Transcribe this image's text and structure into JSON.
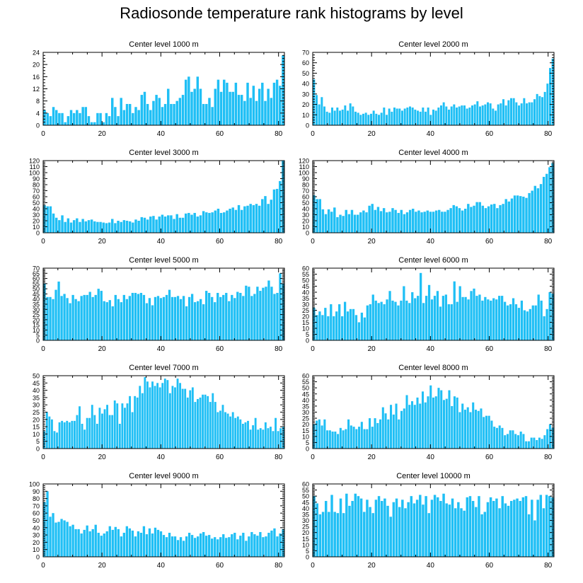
{
  "page": {
    "title": "Radiosonde temperature rank histograms by level"
  },
  "colors": {
    "bar": "#1FBFF5",
    "axis": "#000000",
    "background": "#ffffff"
  },
  "chart_data": [
    {
      "type": "bar",
      "title": "Center level 1000 m",
      "xlabel": "",
      "ylabel": "",
      "xlim": [
        0,
        82
      ],
      "ylim": [
        0,
        24
      ],
      "xticks": [
        0,
        20,
        40,
        60,
        80
      ],
      "yticks": [
        0,
        4,
        8,
        12,
        16,
        20,
        24
      ],
      "x_start": 0,
      "values": [
        5,
        4,
        3,
        6,
        5,
        4,
        4,
        1,
        3,
        5,
        4,
        5,
        4,
        6,
        6,
        3,
        1,
        1,
        4,
        4,
        1,
        4,
        3,
        9,
        6,
        3,
        9,
        5,
        7,
        7,
        4,
        6,
        5,
        10,
        11,
        7,
        5,
        8,
        10,
        9,
        6,
        7,
        12,
        7,
        7,
        8,
        9,
        10,
        15,
        16,
        11,
        12,
        16,
        12,
        7,
        7,
        9,
        6,
        12,
        15,
        11,
        15,
        14,
        11,
        11,
        14,
        10,
        10,
        8,
        14,
        9,
        13,
        8,
        12,
        14,
        8,
        12,
        9,
        14,
        15,
        13,
        23
      ]
    },
    {
      "type": "bar",
      "title": "Center level 2000 m",
      "xlabel": "",
      "ylabel": "",
      "xlim": [
        0,
        82
      ],
      "ylim": [
        0,
        70
      ],
      "xticks": [
        0,
        20,
        40,
        60,
        80
      ],
      "yticks": [
        0,
        10,
        20,
        30,
        40,
        50,
        60,
        70
      ],
      "x_start": 0,
      "values": [
        44,
        29,
        20,
        27,
        18,
        13,
        12,
        17,
        14,
        17,
        14,
        15,
        19,
        14,
        21,
        18,
        13,
        12,
        10,
        11,
        12,
        10,
        11,
        14,
        11,
        10,
        12,
        17,
        10,
        16,
        13,
        17,
        16,
        16,
        14,
        16,
        17,
        18,
        17,
        15,
        14,
        13,
        17,
        13,
        17,
        10,
        15,
        14,
        17,
        19,
        22,
        18,
        15,
        18,
        20,
        17,
        18,
        19,
        19,
        16,
        17,
        19,
        20,
        23,
        18,
        19,
        20,
        22,
        21,
        16,
        14,
        20,
        21,
        25,
        19,
        24,
        26,
        26,
        22,
        19,
        21,
        26,
        21,
        22,
        22,
        25,
        30,
        28,
        27,
        32,
        40,
        55,
        64
      ]
    },
    {
      "type": "bar",
      "title": "Center level 3000 m",
      "xlabel": "",
      "ylabel": "",
      "xlim": [
        0,
        82
      ],
      "ylim": [
        0,
        120
      ],
      "xticks": [
        0,
        20,
        40,
        60,
        80
      ],
      "yticks": [
        0,
        10,
        20,
        30,
        40,
        50,
        60,
        70,
        80,
        90,
        100,
        110,
        120
      ],
      "x_start": 0,
      "values": [
        46,
        44,
        44,
        32,
        25,
        21,
        29,
        18,
        24,
        17,
        21,
        24,
        18,
        23,
        19,
        21,
        22,
        19,
        18,
        18,
        17,
        16,
        17,
        23,
        16,
        20,
        18,
        21,
        20,
        19,
        17,
        22,
        20,
        26,
        25,
        22,
        27,
        28,
        22,
        27,
        30,
        27,
        29,
        29,
        23,
        31,
        25,
        25,
        32,
        33,
        30,
        33,
        27,
        29,
        36,
        34,
        33,
        34,
        37,
        40,
        33,
        34,
        37,
        40,
        42,
        38,
        46,
        38,
        44,
        45,
        48,
        46,
        48,
        45,
        56,
        61,
        48,
        55,
        72,
        73,
        86,
        120
      ]
    },
    {
      "type": "bar",
      "title": "Center level 4000 m",
      "xlabel": "",
      "ylabel": "",
      "xlim": [
        0,
        82
      ],
      "ylim": [
        0,
        120
      ],
      "xticks": [
        0,
        20,
        40,
        60,
        80
      ],
      "yticks": [
        0,
        10,
        20,
        30,
        40,
        50,
        60,
        70,
        80,
        90,
        100,
        110,
        120
      ],
      "x_start": 0,
      "values": [
        62,
        56,
        56,
        39,
        31,
        39,
        35,
        42,
        26,
        30,
        28,
        38,
        31,
        38,
        30,
        30,
        34,
        37,
        34,
        45,
        48,
        38,
        43,
        36,
        41,
        34,
        35,
        41,
        38,
        33,
        38,
        31,
        34,
        38,
        40,
        35,
        37,
        34,
        35,
        37,
        35,
        35,
        37,
        38,
        35,
        35,
        38,
        41,
        46,
        44,
        41,
        37,
        40,
        48,
        43,
        45,
        51,
        51,
        45,
        41,
        44,
        47,
        48,
        41,
        46,
        48,
        56,
        52,
        57,
        62,
        62,
        61,
        60,
        58,
        66,
        70,
        78,
        74,
        81,
        93,
        98,
        109,
        116
      ]
    },
    {
      "type": "bar",
      "title": "Center level 5000 m",
      "xlabel": "",
      "ylabel": "",
      "xlim": [
        0,
        82
      ],
      "ylim": [
        0,
        70
      ],
      "xticks": [
        0,
        20,
        40,
        60,
        80
      ],
      "yticks": [
        0,
        5,
        10,
        15,
        20,
        25,
        30,
        35,
        40,
        45,
        50,
        55,
        60,
        65,
        70
      ],
      "x_start": 0,
      "values": [
        55,
        42,
        42,
        40,
        49,
        57,
        43,
        45,
        41,
        36,
        44,
        40,
        38,
        43,
        44,
        44,
        47,
        42,
        44,
        50,
        48,
        38,
        37,
        39,
        33,
        44,
        40,
        37,
        44,
        40,
        43,
        46,
        46,
        45,
        46,
        44,
        36,
        41,
        34,
        42,
        43,
        41,
        42,
        44,
        49,
        42,
        42,
        43,
        40,
        43,
        33,
        42,
        45,
        37,
        38,
        40,
        35,
        48,
        46,
        42,
        37,
        46,
        42,
        44,
        46,
        38,
        44,
        41,
        47,
        46,
        43,
        53,
        52,
        43,
        45,
        52,
        48,
        51,
        52,
        58,
        52,
        45,
        46,
        65,
        55
      ]
    },
    {
      "type": "bar",
      "title": "Center level 6000 m",
      "xlabel": "",
      "ylabel": "",
      "xlim": [
        0,
        82
      ],
      "ylim": [
        0,
        60
      ],
      "xticks": [
        0,
        20,
        40,
        60,
        80
      ],
      "yticks": [
        0,
        5,
        10,
        15,
        20,
        25,
        30,
        35,
        40,
        45,
        50,
        55,
        60
      ],
      "x_start": 0,
      "values": [
        27,
        21,
        24,
        21,
        27,
        20,
        30,
        20,
        24,
        30,
        20,
        32,
        24,
        26,
        26,
        21,
        15,
        23,
        19,
        29,
        30,
        38,
        33,
        31,
        32,
        30,
        34,
        41,
        33,
        32,
        29,
        33,
        45,
        33,
        31,
        40,
        35,
        37,
        56,
        31,
        37,
        46,
        34,
        37,
        41,
        28,
        37,
        38,
        30,
        30,
        49,
        32,
        45,
        36,
        36,
        34,
        41,
        43,
        37,
        38,
        33,
        36,
        34,
        33,
        35,
        34,
        37,
        37,
        32,
        29,
        30,
        35,
        30,
        27,
        33,
        25,
        24,
        26,
        29,
        29,
        38,
        33,
        20,
        26,
        40,
        39
      ]
    },
    {
      "type": "bar",
      "title": "Center level 7000 m",
      "xlabel": "",
      "ylabel": "",
      "xlim": [
        0,
        82
      ],
      "ylim": [
        0,
        50
      ],
      "xticks": [
        0,
        20,
        40,
        60,
        80
      ],
      "yticks": [
        0,
        5,
        10,
        15,
        20,
        25,
        30,
        35,
        40,
        45,
        50
      ],
      "x_start": 0,
      "values": [
        12,
        25,
        22,
        20,
        12,
        11,
        18,
        19,
        18,
        19,
        18,
        19,
        19,
        23,
        29,
        17,
        13,
        21,
        21,
        30,
        23,
        17,
        28,
        24,
        27,
        30,
        23,
        23,
        33,
        31,
        17,
        31,
        28,
        31,
        36,
        25,
        36,
        35,
        43,
        38,
        49,
        46,
        42,
        46,
        43,
        45,
        42,
        45,
        48,
        47,
        38,
        43,
        42,
        48,
        45,
        41,
        41,
        35,
        40,
        42,
        32,
        34,
        35,
        37,
        37,
        36,
        32,
        38,
        32,
        25,
        26,
        30,
        25,
        24,
        22,
        25,
        21,
        22,
        20,
        17,
        18,
        19,
        13,
        16,
        21,
        13,
        14,
        13,
        18,
        14,
        15,
        12,
        21,
        12,
        14,
        15
      ]
    },
    {
      "type": "bar",
      "title": "Center level 8000 m",
      "xlabel": "",
      "ylabel": "",
      "xlim": [
        0,
        82
      ],
      "ylim": [
        0,
        60
      ],
      "xticks": [
        0,
        20,
        40,
        60,
        80
      ],
      "yticks": [
        0,
        5,
        10,
        15,
        20,
        25,
        30,
        35,
        40,
        45,
        50,
        55,
        60
      ],
      "x_start": 0,
      "values": [
        20,
        23,
        24,
        19,
        24,
        15,
        15,
        14,
        14,
        12,
        17,
        15,
        16,
        24,
        19,
        18,
        16,
        18,
        22,
        16,
        16,
        25,
        18,
        25,
        21,
        24,
        34,
        29,
        24,
        36,
        28,
        37,
        24,
        31,
        33,
        44,
        36,
        39,
        36,
        42,
        37,
        47,
        38,
        43,
        52,
        42,
        43,
        50,
        48,
        40,
        41,
        48,
        35,
        43,
        42,
        30,
        37,
        32,
        34,
        30,
        38,
        32,
        31,
        33,
        26,
        27,
        27,
        23,
        18,
        17,
        19,
        17,
        11,
        12,
        15,
        15,
        12,
        11,
        14,
        12,
        6,
        6,
        9,
        9,
        7,
        9,
        8,
        11,
        16,
        20,
        17
      ]
    },
    {
      "type": "bar",
      "title": "Center level 9000 m",
      "xlabel": "",
      "ylabel": "",
      "xlim": [
        0,
        82
      ],
      "ylim": [
        0,
        100
      ],
      "xticks": [
        0,
        20,
        40,
        60,
        80
      ],
      "yticks": [
        0,
        10,
        20,
        30,
        40,
        50,
        60,
        70,
        80,
        90,
        100
      ],
      "x_start": 0,
      "values": [
        75,
        90,
        55,
        60,
        47,
        48,
        52,
        50,
        48,
        42,
        44,
        38,
        38,
        32,
        37,
        43,
        35,
        38,
        44,
        33,
        29,
        32,
        35,
        42,
        37,
        41,
        38,
        28,
        33,
        42,
        39,
        36,
        28,
        35,
        33,
        42,
        31,
        39,
        32,
        40,
        37,
        35,
        30,
        27,
        33,
        28,
        28,
        23,
        27,
        22,
        28,
        33,
        30,
        26,
        28,
        32,
        34,
        29,
        30,
        25,
        27,
        24,
        27,
        31,
        26,
        27,
        31,
        33,
        24,
        29,
        33,
        22,
        28,
        34,
        31,
        29,
        34,
        27,
        28,
        33,
        36,
        39,
        28,
        32,
        38
      ]
    },
    {
      "type": "bar",
      "title": "Center level 10000 m",
      "xlabel": "",
      "ylabel": "",
      "xlim": [
        0,
        82
      ],
      "ylim": [
        0,
        60
      ],
      "xticks": [
        0,
        20,
        40,
        60,
        80
      ],
      "yticks": [
        0,
        5,
        10,
        15,
        20,
        25,
        30,
        35,
        40,
        45,
        50,
        55,
        60
      ],
      "x_start": 0,
      "values": [
        50,
        44,
        35,
        37,
        46,
        37,
        51,
        37,
        36,
        48,
        36,
        52,
        42,
        46,
        52,
        50,
        48,
        37,
        47,
        41,
        36,
        47,
        50,
        46,
        48,
        42,
        33,
        45,
        48,
        41,
        47,
        40,
        45,
        50,
        44,
        47,
        51,
        43,
        50,
        36,
        47,
        51,
        49,
        46,
        52,
        44,
        43,
        48,
        40,
        45,
        40,
        38,
        49,
        50,
        46,
        41,
        50,
        35,
        37,
        45,
        49,
        46,
        48,
        40,
        50,
        44,
        42,
        46,
        47,
        48,
        46,
        49,
        50,
        35,
        47,
        30,
        47,
        51,
        40,
        51,
        50,
        49
      ]
    }
  ]
}
